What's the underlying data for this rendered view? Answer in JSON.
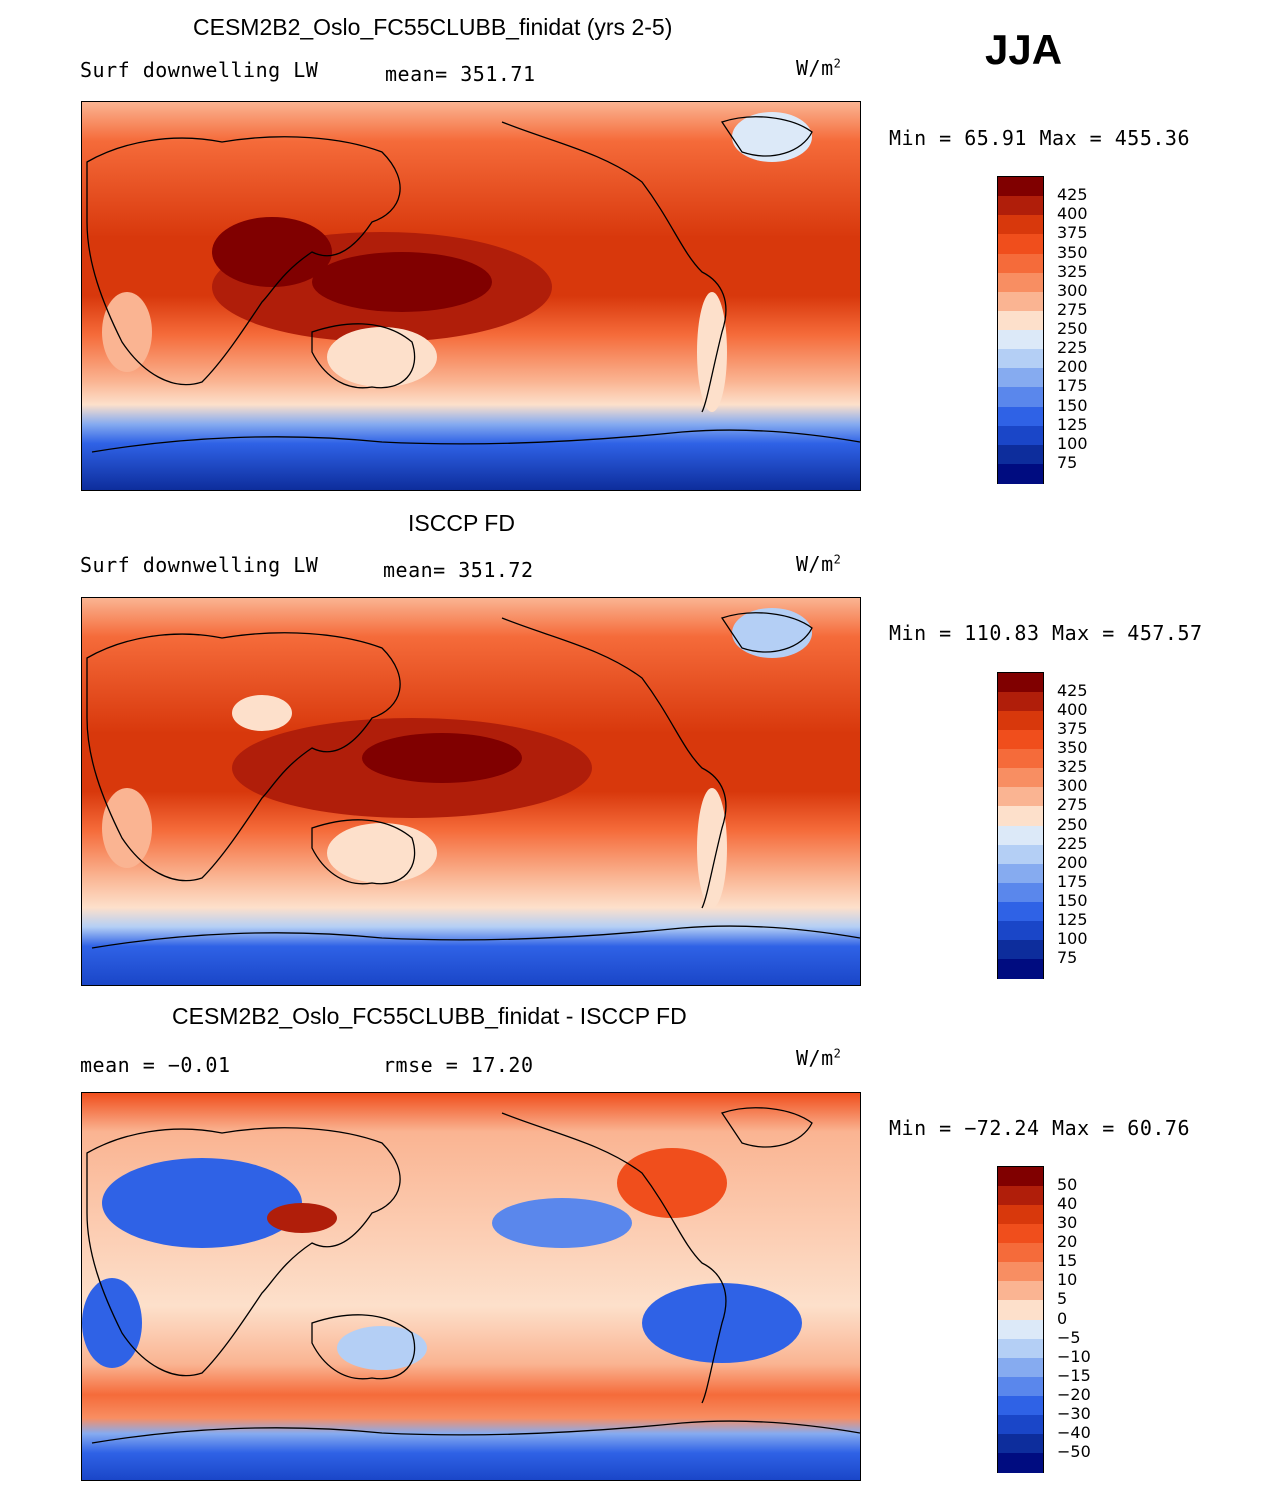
{
  "season": "JJA",
  "panels": [
    {
      "title": "CESM2B2_Oslo_FC55CLUBB_finidat (yrs 2-5)",
      "left_label": "Surf downwelling LW",
      "center_label": "mean= 351.71",
      "units": "W/m",
      "units_exp": "2",
      "minmax": "Min =  65.91 Max = 455.36",
      "colorbar": {
        "labels": [
          "425",
          "400",
          "375",
          "350",
          "325",
          "300",
          "275",
          "250",
          "225",
          "200",
          "175",
          "150",
          "125",
          "100",
          "75"
        ],
        "colors": [
          "#800000",
          "#b01e0a",
          "#d8380c",
          "#f04e1c",
          "#f56b3a",
          "#f88e62",
          "#fab492",
          "#fde0cb",
          "#dce9f8",
          "#b4cff5",
          "#86abf0",
          "#5a87ec",
          "#2f62e6",
          "#1a46c8",
          "#0d2d9c",
          "#000c80"
        ]
      },
      "chart_data": {
        "type": "heatmap",
        "title": "CESM2B2_Oslo_FC55CLUBB_finidat (yrs 2-5)",
        "variable": "Surf downwelling LW",
        "mean": 351.71,
        "min": 65.91,
        "max": 455.36,
        "contour_levels": [
          75,
          100,
          125,
          150,
          175,
          200,
          225,
          250,
          275,
          300,
          325,
          350,
          375,
          400,
          425
        ]
      }
    },
    {
      "title": "ISCCP FD",
      "left_label": "Surf downwelling LW",
      "center_label": "mean= 351.72",
      "units": "W/m",
      "units_exp": "2",
      "minmax": "Min = 110.83 Max = 457.57",
      "colorbar": {
        "labels": [
          "425",
          "400",
          "375",
          "350",
          "325",
          "300",
          "275",
          "250",
          "225",
          "200",
          "175",
          "150",
          "125",
          "100",
          "75"
        ],
        "colors": [
          "#800000",
          "#b01e0a",
          "#d8380c",
          "#f04e1c",
          "#f56b3a",
          "#f88e62",
          "#fab492",
          "#fde0cb",
          "#dce9f8",
          "#b4cff5",
          "#86abf0",
          "#5a87ec",
          "#2f62e6",
          "#1a46c8",
          "#0d2d9c",
          "#000c80"
        ]
      },
      "chart_data": {
        "type": "heatmap",
        "title": "ISCCP FD",
        "variable": "Surf downwelling LW",
        "mean": 351.72,
        "min": 110.83,
        "max": 457.57,
        "contour_levels": [
          75,
          100,
          125,
          150,
          175,
          200,
          225,
          250,
          275,
          300,
          325,
          350,
          375,
          400,
          425
        ]
      }
    },
    {
      "title": "CESM2B2_Oslo_FC55CLUBB_finidat - ISCCP FD",
      "left_label": "mean =  −0.01",
      "center_label": "rmse =   17.20",
      "units": "W/m",
      "units_exp": "2",
      "minmax": "Min = −72.24 Max =  60.76",
      "colorbar": {
        "labels": [
          "50",
          "40",
          "30",
          "20",
          "15",
          "10",
          "5",
          "0",
          "−5",
          "−10",
          "−15",
          "−20",
          "−30",
          "−40",
          "−50"
        ],
        "colors": [
          "#800000",
          "#b01e0a",
          "#d8380c",
          "#f04e1c",
          "#f56b3a",
          "#f88e62",
          "#fab492",
          "#fde0cb",
          "#dce9f8",
          "#b4cff5",
          "#86abf0",
          "#5a87ec",
          "#2f62e6",
          "#1a46c8",
          "#0d2d9c",
          "#000c80"
        ]
      },
      "chart_data": {
        "type": "heatmap",
        "title": "CESM2B2_Oslo_FC55CLUBB_finidat - ISCCP FD",
        "mean": -0.01,
        "rmse": 17.2,
        "min": -72.24,
        "max": 60.76,
        "contour_levels": [
          -50,
          -40,
          -30,
          -20,
          -15,
          -10,
          -5,
          0,
          5,
          10,
          15,
          20,
          30,
          40,
          50
        ]
      }
    }
  ]
}
